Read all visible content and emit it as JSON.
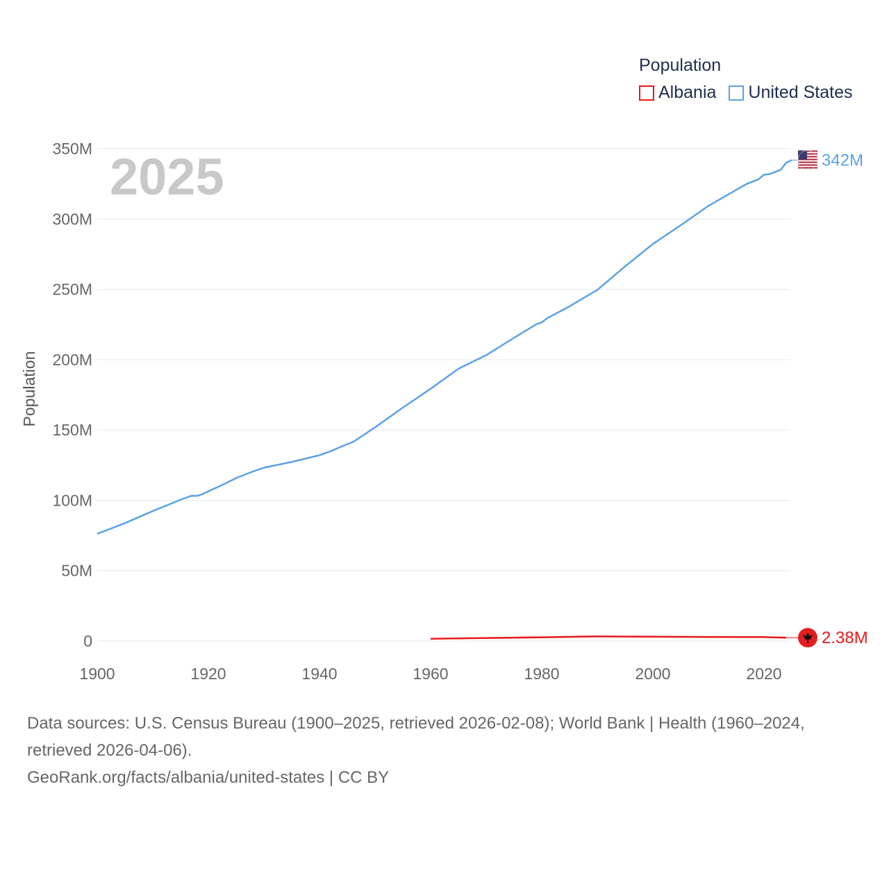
{
  "legend": {
    "title": "Population",
    "items": [
      {
        "label": "Albania",
        "color": "#e8181a"
      },
      {
        "label": "United States",
        "color": "#5aa2e6"
      }
    ]
  },
  "chart_data": {
    "type": "line",
    "title": "",
    "year_overlay": "2025",
    "xlabel": "",
    "ylabel": "Population",
    "xlim": [
      1900,
      2028
    ],
    "ylim": [
      0,
      350000000
    ],
    "x_ticks": [
      "1900",
      "1920",
      "1940",
      "1960",
      "1980",
      "2000",
      "2020"
    ],
    "y_ticks": [
      "0",
      "50M",
      "100M",
      "150M",
      "200M",
      "250M",
      "300M",
      "350M"
    ],
    "series": [
      {
        "name": "United States",
        "color": "#5aa2e6",
        "end_label": "342M",
        "icon": "us-flag-icon",
        "x": [
          1900,
          1905,
          1910,
          1913,
          1915,
          1917,
          1918,
          1919,
          1920,
          1922,
          1925,
          1928,
          1930,
          1935,
          1940,
          1942,
          1945,
          1946,
          1948,
          1950,
          1955,
          1960,
          1965,
          1970,
          1975,
          1979,
          1980,
          1981,
          1985,
          1990,
          1995,
          2000,
          2005,
          2010,
          2015,
          2017,
          2019,
          2020,
          2021,
          2023,
          2024,
          2025
        ],
        "values": [
          76.2,
          83.8,
          92.4,
          97.2,
          100.5,
          103.3,
          103.2,
          104.5,
          106.5,
          110.0,
          115.8,
          120.5,
          123.2,
          127.3,
          132.1,
          134.9,
          140.0,
          141.4,
          146.6,
          151.9,
          165.9,
          179.3,
          193.5,
          203.2,
          215.5,
          225.1,
          226.5,
          229.5,
          237.9,
          249.6,
          266.3,
          282.2,
          295.5,
          309.3,
          320.7,
          325.1,
          328.2,
          331.5,
          331.9,
          334.9,
          340.1,
          341.8
        ]
      },
      {
        "name": "Albania",
        "color": "#e8181a",
        "end_label": "2.38M",
        "icon": "albania-flag-icon",
        "x": [
          1960,
          1970,
          1980,
          1990,
          2000,
          2010,
          2020,
          2024
        ],
        "values": [
          1.61,
          2.15,
          2.67,
          3.29,
          3.09,
          2.91,
          2.84,
          2.38
        ]
      }
    ]
  },
  "footer": {
    "sources": "Data sources: U.S. Census Bureau (1900–2025, retrieved 2026-02-08); World Bank | Health (1960–2024, retrieved 2026-04-06).",
    "link": "GeoRank.org/facts/albania/united-states | CC BY"
  }
}
